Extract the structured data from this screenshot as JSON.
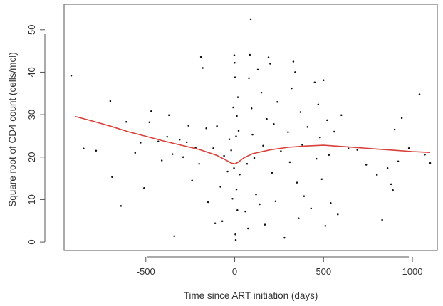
{
  "chart_data": {
    "type": "scatter",
    "title": "",
    "xlabel": "Time since ART initiation (days)",
    "ylabel": "Square root of CD4 count (cells/mcl)",
    "xlim": [
      -960,
      1140
    ],
    "ylim": [
      -2,
      56
    ],
    "x_ticks": [
      -500,
      0,
      500,
      1000
    ],
    "y_ticks": [
      0,
      10,
      20,
      30,
      40,
      50
    ],
    "x_tick_labels": [
      "-500",
      "0",
      "500",
      "1000"
    ],
    "y_tick_labels": [
      "0",
      "10",
      "20",
      "30",
      "40",
      "50"
    ],
    "grid": false,
    "legend": "none",
    "colors": {
      "points": "#111111",
      "smooth": "#d8403a",
      "frame": "#555555"
    },
    "smooth_line": {
      "x": [
        -900,
        -800,
        -700,
        -600,
        -500,
        -400,
        -300,
        -200,
        -100,
        -50,
        -20,
        0,
        20,
        50,
        100,
        200,
        300,
        400,
        500,
        600,
        700,
        800,
        900,
        1000,
        1100
      ],
      "y": [
        29.6,
        28.5,
        27.3,
        26.0,
        24.9,
        23.8,
        22.8,
        21.8,
        20.4,
        19.3,
        18.6,
        18.4,
        18.8,
        19.8,
        20.8,
        21.7,
        22.3,
        22.6,
        22.8,
        22.5,
        22.2,
        21.9,
        21.6,
        21.3,
        21.1
      ]
    },
    "points": [
      [
        -920,
        39.2
      ],
      [
        -850,
        22.0
      ],
      [
        -780,
        21.5
      ],
      [
        -700,
        33.2
      ],
      [
        -690,
        15.3
      ],
      [
        -640,
        8.5
      ],
      [
        -610,
        28.3
      ],
      [
        -560,
        21.0
      ],
      [
        -530,
        23.4
      ],
      [
        -510,
        12.7
      ],
      [
        -480,
        28.2
      ],
      [
        -470,
        30.8
      ],
      [
        -430,
        23.7
      ],
      [
        -410,
        19.2
      ],
      [
        -380,
        24.8
      ],
      [
        -370,
        29.9
      ],
      [
        -350,
        20.7
      ],
      [
        -340,
        1.4
      ],
      [
        -310,
        24.1
      ],
      [
        -290,
        20.0
      ],
      [
        -270,
        23.5
      ],
      [
        -260,
        27.4
      ],
      [
        -240,
        14.5
      ],
      [
        -220,
        22.2
      ],
      [
        -200,
        18.4
      ],
      [
        -190,
        43.6
      ],
      [
        -180,
        41.0
      ],
      [
        -160,
        26.8
      ],
      [
        -150,
        9.4
      ],
      [
        -120,
        22.1
      ],
      [
        -110,
        4.4
      ],
      [
        -100,
        27.3
      ],
      [
        -80,
        13.0
      ],
      [
        -70,
        4.9
      ],
      [
        -60,
        20.3
      ],
      [
        -40,
        16.6
      ],
      [
        -30,
        24.2
      ],
      [
        -20,
        21.6
      ],
      [
        -12,
        10.2
      ],
      [
        -8,
        31.7
      ],
      [
        -4,
        17.4
      ],
      [
        -2,
        44.0
      ],
      [
        0,
        42.2
      ],
      [
        2,
        38.8
      ],
      [
        4,
        1.8
      ],
      [
        6,
        0.5
      ],
      [
        8,
        24.9
      ],
      [
        10,
        12.4
      ],
      [
        12,
        29.7
      ],
      [
        15,
        7.5
      ],
      [
        18,
        34.1
      ],
      [
        22,
        26.2
      ],
      [
        28,
        15.9
      ],
      [
        60,
        7.2
      ],
      [
        70,
        18.4
      ],
      [
        75,
        3.2
      ],
      [
        80,
        38.6
      ],
      [
        85,
        44.1
      ],
      [
        90,
        52.5
      ],
      [
        95,
        31.5
      ],
      [
        100,
        25.3
      ],
      [
        110,
        19.8
      ],
      [
        120,
        11.2
      ],
      [
        130,
        40.6
      ],
      [
        140,
        8.9
      ],
      [
        150,
        35.2
      ],
      [
        160,
        22.7
      ],
      [
        170,
        4.1
      ],
      [
        180,
        29.0
      ],
      [
        190,
        43.5
      ],
      [
        200,
        42.0
      ],
      [
        210,
        16.3
      ],
      [
        220,
        27.8
      ],
      [
        230,
        9.6
      ],
      [
        240,
        33.0
      ],
      [
        260,
        21.4
      ],
      [
        280,
        1.0
      ],
      [
        300,
        25.9
      ],
      [
        310,
        18.8
      ],
      [
        320,
        36.2
      ],
      [
        330,
        42.5
      ],
      [
        340,
        40.0
      ],
      [
        350,
        14.0
      ],
      [
        360,
        5.6
      ],
      [
        370,
        30.6
      ],
      [
        380,
        22.9
      ],
      [
        390,
        10.8
      ],
      [
        410,
        27.1
      ],
      [
        430,
        7.9
      ],
      [
        450,
        37.6
      ],
      [
        460,
        19.6
      ],
      [
        470,
        32.4
      ],
      [
        480,
        24.6
      ],
      [
        490,
        14.8
      ],
      [
        500,
        38.1
      ],
      [
        510,
        3.8
      ],
      [
        520,
        28.7
      ],
      [
        530,
        20.5
      ],
      [
        540,
        9.2
      ],
      [
        560,
        26.0
      ],
      [
        580,
        6.5
      ],
      [
        600,
        29.9
      ],
      [
        640,
        22.0
      ],
      [
        690,
        21.7
      ],
      [
        740,
        18.2
      ],
      [
        800,
        15.8
      ],
      [
        830,
        5.2
      ],
      [
        860,
        17.4
      ],
      [
        880,
        13.6
      ],
      [
        890,
        12.2
      ],
      [
        900,
        26.5
      ],
      [
        920,
        19.0
      ],
      [
        940,
        29.2
      ],
      [
        980,
        22.1
      ],
      [
        1040,
        34.8
      ],
      [
        1070,
        20.6
      ],
      [
        1100,
        18.6
      ]
    ]
  }
}
